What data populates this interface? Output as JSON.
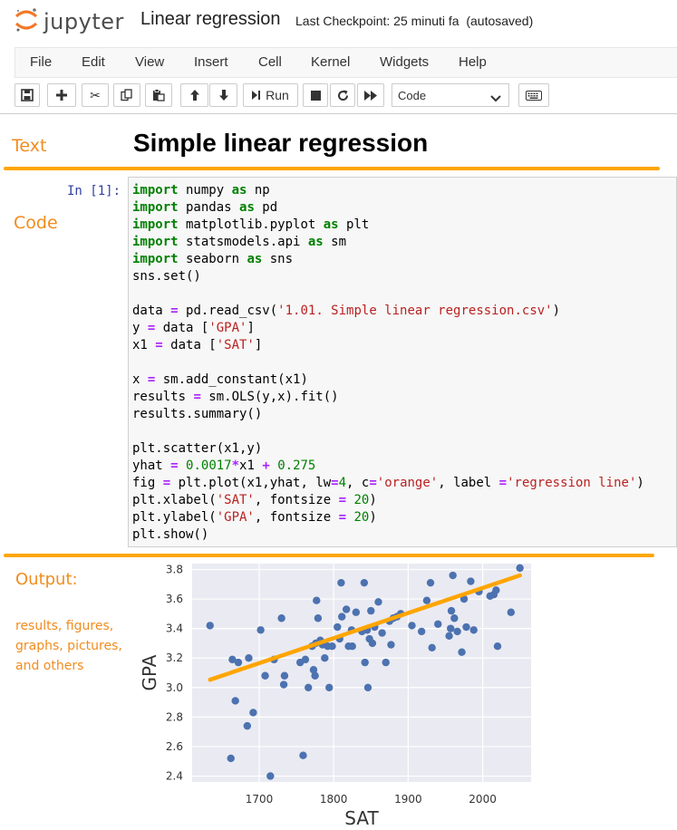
{
  "header": {
    "logo_text": "jupyter",
    "notebook_title": "Linear regression",
    "checkpoint": "Last Checkpoint: 25 minuti fa",
    "autosave": "(autosaved)"
  },
  "menu": {
    "items": [
      "File",
      "Edit",
      "View",
      "Insert",
      "Cell",
      "Kernel",
      "Widgets",
      "Help"
    ]
  },
  "toolbar": {
    "run_label": "Run",
    "cell_type": "Code"
  },
  "annotations": {
    "text": "Text",
    "code": "Code",
    "output": "Output:",
    "output_desc_1": "results, figures,",
    "output_desc_2": "graphs, pictures,",
    "output_desc_3": "and others",
    "accent_color": "#f28c1e",
    "line_color": "#ffa500"
  },
  "markdown_cell": {
    "heading": "Simple linear regression"
  },
  "code_cell": {
    "prompt": "In [1]:"
  },
  "chart_data": {
    "type": "scatter",
    "xlabel": "SAT",
    "ylabel": "GPA",
    "xlim": [
      1610,
      2065
    ],
    "ylim": [
      2.36,
      3.84
    ],
    "xticks": [
      1700,
      1800,
      1900,
      2000
    ],
    "yticks": [
      2.4,
      2.6,
      2.8,
      3.0,
      3.2,
      3.4,
      3.6,
      3.8
    ],
    "grid": true,
    "background": "#eaeaf2",
    "point_color": "#4c72b0",
    "line_color": "#ffa500",
    "regression_line": {
      "slope": 0.0017,
      "intercept": 0.275,
      "x_range": [
        1634,
        2050
      ]
    },
    "points": [
      [
        1634,
        3.42
      ],
      [
        1662,
        2.52
      ],
      [
        1664,
        3.19
      ],
      [
        1668,
        2.91
      ],
      [
        1672,
        3.17
      ],
      [
        1684,
        2.74
      ],
      [
        1686,
        3.2
      ],
      [
        1692,
        2.83
      ],
      [
        1702,
        3.39
      ],
      [
        1708,
        3.08
      ],
      [
        1715,
        2.4
      ],
      [
        1720,
        3.19
      ],
      [
        1730,
        3.47
      ],
      [
        1733,
        3.02
      ],
      [
        1734,
        3.08
      ],
      [
        1755,
        3.17
      ],
      [
        1759,
        2.54
      ],
      [
        1762,
        3.19
      ],
      [
        1766,
        3.0
      ],
      [
        1771,
        3.28
      ],
      [
        1773,
        3.12
      ],
      [
        1775,
        3.08
      ],
      [
        1776,
        3.3
      ],
      [
        1777,
        3.59
      ],
      [
        1779,
        3.47
      ],
      [
        1782,
        3.32
      ],
      [
        1785,
        3.29
      ],
      [
        1788,
        3.2
      ],
      [
        1792,
        3.28
      ],
      [
        1794,
        3.0
      ],
      [
        1798,
        3.28
      ],
      [
        1805,
        3.41
      ],
      [
        1808,
        3.33
      ],
      [
        1810,
        3.71
      ],
      [
        1811,
        3.48
      ],
      [
        1817,
        3.53
      ],
      [
        1820,
        3.28
      ],
      [
        1824,
        3.39
      ],
      [
        1825,
        3.28
      ],
      [
        1830,
        3.51
      ],
      [
        1838,
        3.38
      ],
      [
        1841,
        3.71
      ],
      [
        1842,
        3.17
      ],
      [
        1845,
        3.39
      ],
      [
        1846,
        3.0
      ],
      [
        1848,
        3.33
      ],
      [
        1850,
        3.52
      ],
      [
        1852,
        3.3
      ],
      [
        1855,
        3.41
      ],
      [
        1860,
        3.58
      ],
      [
        1865,
        3.37
      ],
      [
        1870,
        3.17
      ],
      [
        1875,
        3.45
      ],
      [
        1877,
        3.29
      ],
      [
        1880,
        3.47
      ],
      [
        1885,
        3.48
      ],
      [
        1890,
        3.5
      ],
      [
        1905,
        3.42
      ],
      [
        1918,
        3.38
      ],
      [
        1925,
        3.59
      ],
      [
        1930,
        3.71
      ],
      [
        1932,
        3.27
      ],
      [
        1940,
        3.43
      ],
      [
        1955,
        3.35
      ],
      [
        1957,
        3.4
      ],
      [
        1958,
        3.52
      ],
      [
        1960,
        3.76
      ],
      [
        1962,
        3.47
      ],
      [
        1966,
        3.38
      ],
      [
        1972,
        3.24
      ],
      [
        1975,
        3.6
      ],
      [
        1978,
        3.41
      ],
      [
        1984,
        3.72
      ],
      [
        1988,
        3.39
      ],
      [
        1995,
        3.65
      ],
      [
        2010,
        3.62
      ],
      [
        2015,
        3.63
      ],
      [
        2018,
        3.66
      ],
      [
        2020,
        3.28
      ],
      [
        2038,
        3.51
      ],
      [
        2050,
        3.81
      ]
    ]
  }
}
